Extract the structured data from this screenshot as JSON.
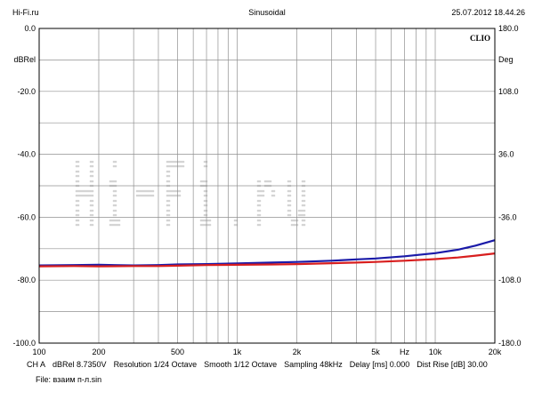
{
  "header": {
    "left": "Hi-Fi.ru",
    "center": "Sinusoidal",
    "right": "25.07.2012 18.44.26"
  },
  "watermark": "Hi-Fi.ru",
  "colors": {
    "grid": "#909090",
    "frame": "#000000",
    "series_blue": "#1a1aa8",
    "series_red": "#d81e1e",
    "watermark": "#d4d4d4"
  },
  "chart_data": {
    "type": "line",
    "brand": "CLIO",
    "x_scale": "log",
    "xlim": [
      100,
      20000
    ],
    "x_ticks": [
      {
        "v": 100,
        "label": "100"
      },
      {
        "v": 200,
        "label": "200"
      },
      {
        "v": 500,
        "label": "500"
      },
      {
        "v": 1000,
        "label": "1k"
      },
      {
        "v": 2000,
        "label": "2k"
      },
      {
        "v": 5000,
        "label": "5k"
      },
      {
        "v": 7000,
        "label": "Hz"
      },
      {
        "v": 10000,
        "label": "10k"
      },
      {
        "v": 20000,
        "label": "20k"
      }
    ],
    "ylim_left": [
      -100,
      0
    ],
    "ylabel_left": "dBRel",
    "y_ticks_left": [
      "0.0",
      "-20.0",
      "-40.0",
      "-60.0",
      "-80.0",
      "-100.0"
    ],
    "ylim_right": [
      -180,
      180
    ],
    "ylabel_right": "Deg",
    "y_ticks_right": [
      "180.0",
      "108.0",
      "36.0",
      "-36.0",
      "-108.0",
      "-180.0"
    ],
    "grid": true,
    "series": [
      {
        "color": "#1a1aa8",
        "points": [
          [
            100,
            -75.3
          ],
          [
            150,
            -75.2
          ],
          [
            200,
            -75.1
          ],
          [
            300,
            -75.3
          ],
          [
            400,
            -75.2
          ],
          [
            500,
            -75.0
          ],
          [
            700,
            -74.9
          ],
          [
            1000,
            -74.7
          ],
          [
            1500,
            -74.4
          ],
          [
            2000,
            -74.2
          ],
          [
            3000,
            -73.8
          ],
          [
            4000,
            -73.4
          ],
          [
            5000,
            -73.1
          ],
          [
            7000,
            -72.4
          ],
          [
            10000,
            -71.4
          ],
          [
            13000,
            -70.3
          ],
          [
            16000,
            -69.0
          ],
          [
            20000,
            -67.3
          ]
        ]
      },
      {
        "color": "#d81e1e",
        "points": [
          [
            100,
            -75.6
          ],
          [
            150,
            -75.5
          ],
          [
            200,
            -75.6
          ],
          [
            300,
            -75.5
          ],
          [
            400,
            -75.5
          ],
          [
            500,
            -75.4
          ],
          [
            700,
            -75.2
          ],
          [
            1000,
            -75.1
          ],
          [
            1500,
            -75.0
          ],
          [
            2000,
            -74.9
          ],
          [
            3000,
            -74.6
          ],
          [
            4000,
            -74.4
          ],
          [
            5000,
            -74.2
          ],
          [
            7000,
            -73.8
          ],
          [
            10000,
            -73.3
          ],
          [
            13000,
            -72.8
          ],
          [
            16000,
            -72.2
          ],
          [
            20000,
            -71.5
          ]
        ]
      }
    ]
  },
  "footer": {
    "channel": "CH A",
    "unit_voltage": "dBRel 8.7350V",
    "resolution": "Resolution 1/24 Octave",
    "smooth": "Smooth 1/12 Octave",
    "sampling": "Sampling 48kHz",
    "delay": "Delay [ms] 0.000",
    "dist_rise": "Dist Rise [dB] 30.00",
    "file": "File: взаим п-л.sin"
  }
}
